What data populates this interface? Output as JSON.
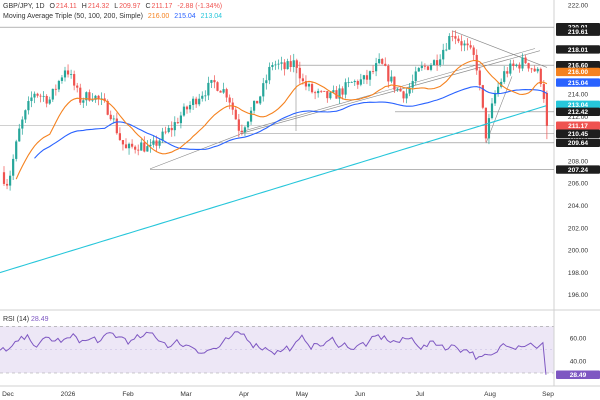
{
  "header": {
    "symbol": "GBP/JPY, 1D",
    "o_label": "O",
    "o_value": "214.11",
    "h_label": "H",
    "h_value": "214.32",
    "l_label": "L",
    "l_value": "209.97",
    "c_label": "C",
    "c_value": "211.17",
    "change": "-2.88 (-1.34%)",
    "ma_title": "Moving Average Triple (50, 100, 200, Simple)",
    "ma50": "216.00",
    "ma100": "215.04",
    "ma200": "213.04"
  },
  "rsi_header": {
    "label": "RSI (14)",
    "value": "28.49"
  },
  "colors": {
    "up": "#26a69a",
    "down": "#ef5350",
    "ma50": "#f5821f",
    "ma100": "#2962ff",
    "ma200": "#26c6da",
    "rsi": "#7e57c2",
    "rsi_band": "#ede7f6"
  },
  "chart_data": [
    {
      "type": "candlestick",
      "title": "GBP/JPY, 1D",
      "x_tick_labels": [
        "Dec",
        "2026",
        "Feb",
        "Mar",
        "Apr",
        "May",
        "Jun",
        "Jul",
        "Aug",
        "Sep"
      ],
      "ylim": [
        195,
        222
      ],
      "y_tick_labels": [
        "196.00",
        "198.00",
        "200.00",
        "202.00",
        "204.00",
        "206.00",
        "208.00",
        "210.00",
        "212.00",
        "214.00",
        "216.00",
        "218.00",
        "220.00",
        "222.00"
      ],
      "price_tags": [
        {
          "value": 220.01,
          "label": "220.01",
          "style": "dark"
        },
        {
          "value": 219.61,
          "label": "219.61",
          "style": "dark"
        },
        {
          "value": 218.01,
          "label": "218.01",
          "style": "dark"
        },
        {
          "value": 216.6,
          "label": "216.60",
          "style": "dark"
        },
        {
          "value": 216.0,
          "label": "216.00",
          "style": "ma50"
        },
        {
          "value": 215.04,
          "label": "215.04",
          "style": "ma100"
        },
        {
          "value": 213.04,
          "label": "213.04",
          "style": "ma200"
        },
        {
          "value": 212.42,
          "label": "212.42",
          "style": "dark"
        },
        {
          "value": 211.17,
          "label": "211.17",
          "style": "down"
        },
        {
          "value": 210.45,
          "label": "210.45",
          "style": "dark"
        },
        {
          "value": 209.64,
          "label": "209.64",
          "style": "dark"
        },
        {
          "value": 207.24,
          "label": "207.24",
          "style": "dark"
        }
      ],
      "horizontal_levels": [
        220.01,
        218.01,
        216.6,
        212.42,
        211.17,
        210.45,
        209.64,
        207.24
      ],
      "moving_averages": [
        {
          "name": "MA 50",
          "last": 216.0
        },
        {
          "name": "MA 100",
          "last": 215.04
        },
        {
          "name": "MA 200",
          "last": 213.04
        }
      ],
      "last_candle": {
        "open": 214.11,
        "high": 214.32,
        "low": 209.97,
        "close": 211.17
      }
    },
    {
      "type": "line",
      "title": "RSI (14)",
      "ylim": [
        20,
        80
      ],
      "y_tick_labels": [
        "40.00",
        "60.00"
      ],
      "levels": [
        70,
        30
      ],
      "last": 28.49
    }
  ]
}
